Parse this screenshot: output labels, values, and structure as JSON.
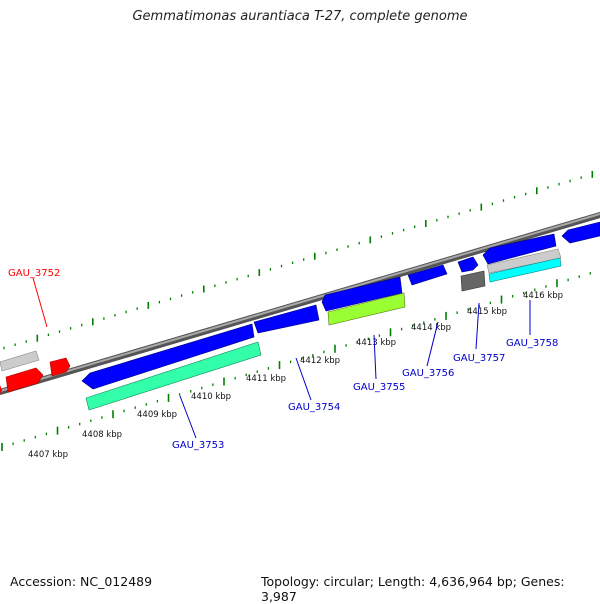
{
  "header": {
    "title": "Gemmatimonas aurantiaca T-27, complete genome"
  },
  "footer": {
    "accession": "Accession: NC_012489",
    "summary": "Topology: circular; Length: 4,636,964 bp; Genes: 3,987"
  },
  "map": {
    "kbp_labels": [
      "4407 kbp",
      "4408 kbp",
      "4409 kbp",
      "4410 kbp",
      "4411 kbp",
      "4412 kbp",
      "4413 kbp",
      "4414 kbp",
      "4415 kbp",
      "4416 kbp"
    ],
    "gene_labels": [
      {
        "text": "GAU_3752",
        "color": "#ff0000"
      },
      {
        "text": "GAU_3753",
        "color": "#0000cc"
      },
      {
        "text": "GAU_3754",
        "color": "#0000cc"
      },
      {
        "text": "GAU_3755",
        "color": "#0000cc"
      },
      {
        "text": "GAU_3756",
        "color": "#0000cc"
      },
      {
        "text": "GAU_3757",
        "color": "#0000cc"
      },
      {
        "text": "GAU_3758",
        "color": "#0000cc"
      }
    ],
    "feature_colors": {
      "cds": "#0000ff",
      "cds_red": "#ff0000",
      "rrna": "#33ffaa",
      "misc": "#99ff33",
      "trna": "#00ffff",
      "pseudo": "#666666",
      "other": "#cccccc",
      "backbone": "#888888",
      "ticks": "#008000"
    }
  }
}
